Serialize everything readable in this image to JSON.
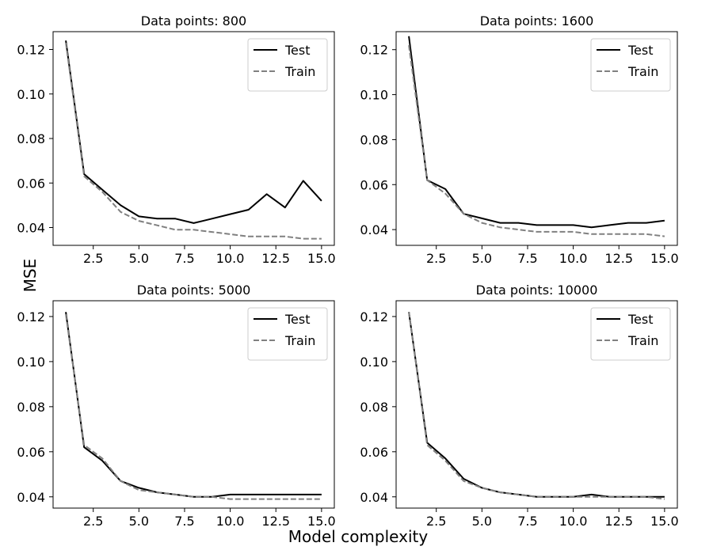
{
  "figure": {
    "ylabel": "MSE",
    "xlabel": "Model complexity"
  },
  "chart_data": [
    {
      "type": "line",
      "title": "Data points: 800",
      "xlim": [
        0.3,
        15.7
      ],
      "ylim": [
        0.032,
        0.128
      ],
      "xticks": [
        2.5,
        5.0,
        7.5,
        10.0,
        12.5,
        15.0
      ],
      "xtick_labels": [
        "2.5",
        "5.0",
        "7.5",
        "10.0",
        "12.5",
        "15.0"
      ],
      "yticks": [
        0.04,
        0.06,
        0.08,
        0.1,
        0.12
      ],
      "ytick_labels": [
        "0.04",
        "0.06",
        "0.08",
        "0.10",
        "0.12"
      ],
      "legend_position": "top-right",
      "x": [
        1,
        2,
        3,
        4,
        5,
        6,
        7,
        8,
        9,
        10,
        11,
        12,
        13,
        14,
        15
      ],
      "series": [
        {
          "name": "Test",
          "color": "#000000",
          "dashed": false,
          "values": [
            0.124,
            0.064,
            0.057,
            0.05,
            0.045,
            0.044,
            0.044,
            0.042,
            0.044,
            0.046,
            0.048,
            0.055,
            0.049,
            0.061,
            0.052
          ]
        },
        {
          "name": "Train",
          "color": "#808080",
          "dashed": true,
          "values": [
            0.123,
            0.063,
            0.056,
            0.047,
            0.043,
            0.041,
            0.039,
            0.039,
            0.038,
            0.037,
            0.036,
            0.036,
            0.036,
            0.035,
            0.035
          ]
        }
      ]
    },
    {
      "type": "line",
      "title": "Data points: 1600",
      "xlim": [
        0.3,
        15.7
      ],
      "ylim": [
        0.033,
        0.128
      ],
      "xticks": [
        2.5,
        5.0,
        7.5,
        10.0,
        12.5,
        15.0
      ],
      "xtick_labels": [
        "2.5",
        "5.0",
        "7.5",
        "10.0",
        "12.5",
        "15.0"
      ],
      "yticks": [
        0.04,
        0.06,
        0.08,
        0.1,
        0.12
      ],
      "ytick_labels": [
        "0.04",
        "0.06",
        "0.08",
        "0.10",
        "0.12"
      ],
      "legend_position": "top-right",
      "x": [
        1,
        2,
        3,
        4,
        5,
        6,
        7,
        8,
        9,
        10,
        11,
        12,
        13,
        14,
        15
      ],
      "series": [
        {
          "name": "Test",
          "color": "#000000",
          "dashed": false,
          "values": [
            0.126,
            0.062,
            0.058,
            0.047,
            0.045,
            0.043,
            0.043,
            0.042,
            0.042,
            0.042,
            0.041,
            0.042,
            0.043,
            0.043,
            0.044
          ]
        },
        {
          "name": "Train",
          "color": "#808080",
          "dashed": true,
          "values": [
            0.122,
            0.062,
            0.056,
            0.047,
            0.043,
            0.041,
            0.04,
            0.039,
            0.039,
            0.039,
            0.038,
            0.038,
            0.038,
            0.038,
            0.037
          ]
        }
      ]
    },
    {
      "type": "line",
      "title": "Data points: 5000",
      "xlim": [
        0.3,
        15.7
      ],
      "ylim": [
        0.035,
        0.127
      ],
      "xticks": [
        2.5,
        5.0,
        7.5,
        10.0,
        12.5,
        15.0
      ],
      "xtick_labels": [
        "2.5",
        "5.0",
        "7.5",
        "10.0",
        "12.5",
        "15.0"
      ],
      "yticks": [
        0.04,
        0.06,
        0.08,
        0.1,
        0.12
      ],
      "ytick_labels": [
        "0.04",
        "0.06",
        "0.08",
        "0.10",
        "0.12"
      ],
      "legend_position": "top-right",
      "x": [
        1,
        2,
        3,
        4,
        5,
        6,
        7,
        8,
        9,
        10,
        11,
        12,
        13,
        14,
        15
      ],
      "series": [
        {
          "name": "Test",
          "color": "#000000",
          "dashed": false,
          "values": [
            0.122,
            0.062,
            0.056,
            0.047,
            0.044,
            0.042,
            0.041,
            0.04,
            0.04,
            0.041,
            0.041,
            0.041,
            0.041,
            0.041,
            0.041
          ]
        },
        {
          "name": "Train",
          "color": "#808080",
          "dashed": true,
          "values": [
            0.121,
            0.063,
            0.057,
            0.047,
            0.043,
            0.042,
            0.041,
            0.04,
            0.04,
            0.039,
            0.039,
            0.039,
            0.039,
            0.039,
            0.039
          ]
        }
      ]
    },
    {
      "type": "line",
      "title": "Data points: 10000",
      "xlim": [
        0.3,
        15.7
      ],
      "ylim": [
        0.035,
        0.127
      ],
      "xticks": [
        2.5,
        5.0,
        7.5,
        10.0,
        12.5,
        15.0
      ],
      "xtick_labels": [
        "2.5",
        "5.0",
        "7.5",
        "10.0",
        "12.5",
        "15.0"
      ],
      "yticks": [
        0.04,
        0.06,
        0.08,
        0.1,
        0.12
      ],
      "ytick_labels": [
        "0.04",
        "0.06",
        "0.08",
        "0.10",
        "0.12"
      ],
      "legend_position": "top-right",
      "x": [
        1,
        2,
        3,
        4,
        5,
        6,
        7,
        8,
        9,
        10,
        11,
        12,
        13,
        14,
        15
      ],
      "series": [
        {
          "name": "Test",
          "color": "#000000",
          "dashed": false,
          "values": [
            0.122,
            0.064,
            0.057,
            0.048,
            0.044,
            0.042,
            0.041,
            0.04,
            0.04,
            0.04,
            0.041,
            0.04,
            0.04,
            0.04,
            0.04
          ]
        },
        {
          "name": "Train",
          "color": "#808080",
          "dashed": true,
          "values": [
            0.122,
            0.063,
            0.056,
            0.047,
            0.044,
            0.042,
            0.041,
            0.04,
            0.04,
            0.04,
            0.04,
            0.04,
            0.04,
            0.04,
            0.039
          ]
        }
      ]
    }
  ]
}
